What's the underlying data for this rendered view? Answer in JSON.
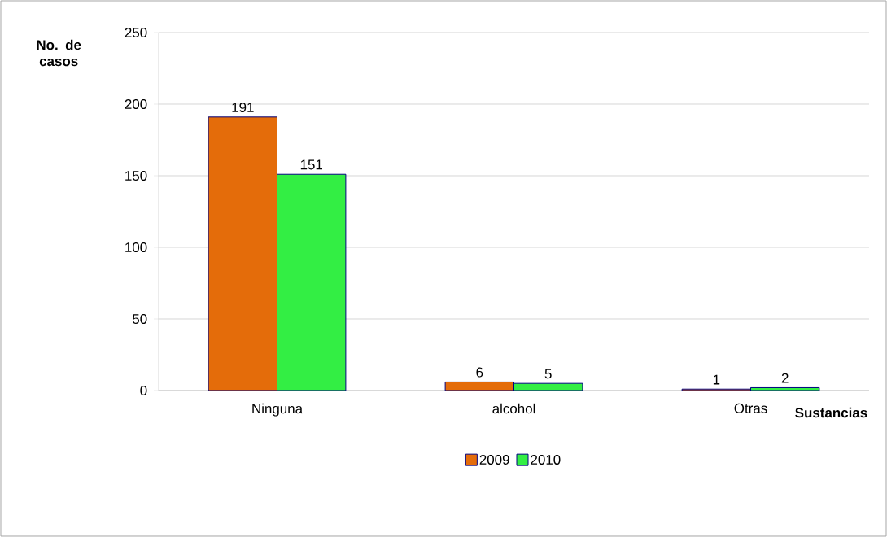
{
  "chart_data": {
    "type": "bar",
    "categories": [
      "Ninguna",
      "alcohol",
      "Otras"
    ],
    "series": [
      {
        "name": "2009",
        "color": "#e46c0a",
        "values": [
          191,
          6,
          1
        ]
      },
      {
        "name": "2010",
        "color": "#33ee44",
        "values": [
          151,
          5,
          2
        ]
      }
    ],
    "xlabel": "Sustancias",
    "ylabel": "No. de casos",
    "ylim": [
      0,
      250
    ],
    "yticks": [
      0,
      50,
      100,
      150,
      200,
      250
    ],
    "grid": "y",
    "legend": "bottom",
    "data_labels": true
  }
}
